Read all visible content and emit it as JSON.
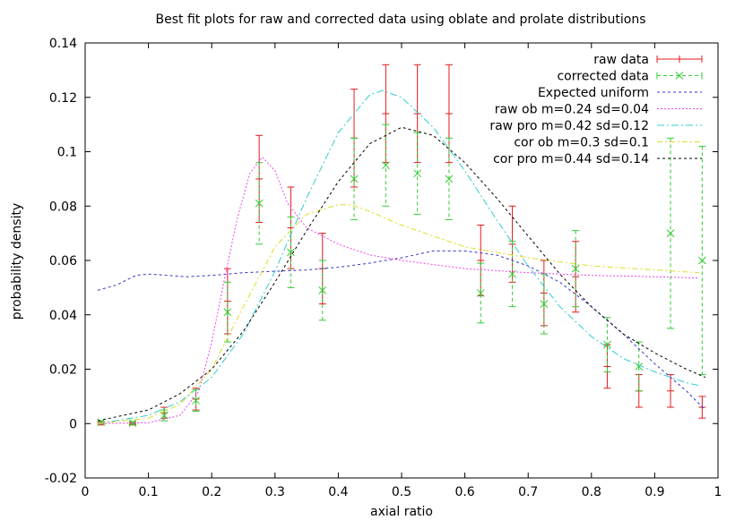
{
  "chart_data": {
    "type": "line",
    "title": "Best fit plots for raw and corrected data using oblate and prolate distributions",
    "xlabel": "axial ratio",
    "ylabel": "probability density",
    "xlim": [
      0,
      1
    ],
    "ylim": [
      -0.02,
      0.14
    ],
    "xticks": [
      0,
      0.1,
      0.2,
      0.3,
      0.4,
      0.5,
      0.6,
      0.7,
      0.8,
      0.9,
      1
    ],
    "xtick_labels": [
      "0",
      "0.1",
      "0.2",
      "0.3",
      "0.4",
      "0.5",
      "0.6",
      "0.7",
      "0.8",
      "0.9",
      "1"
    ],
    "yticks": [
      -0.02,
      0,
      0.02,
      0.04,
      0.06,
      0.08,
      0.1,
      0.12,
      0.14
    ],
    "ytick_labels": [
      "-0.02",
      "0",
      "0.02",
      "0.04",
      "0.06",
      "0.08",
      "0.1",
      "0.12",
      "0.14"
    ],
    "grid": false,
    "legend_position": "top-right",
    "series": [
      {
        "name": "raw data",
        "kind": "errorbars",
        "color": "#e41a1c",
        "x": [
          0.025,
          0.075,
          0.125,
          0.175,
          0.225,
          0.275,
          0.325,
          0.375,
          0.425,
          0.475,
          0.525,
          0.575,
          0.625,
          0.675,
          0.725,
          0.775,
          0.825,
          0.875,
          0.925,
          0.975
        ],
        "y": [
          0.0,
          0.0,
          0.004,
          0.009,
          0.045,
          0.09,
          0.072,
          0.057,
          0.105,
          0.114,
          0.114,
          0.114,
          0.06,
          0.066,
          0.048,
          0.054,
          0.021,
          0.012,
          0.012,
          0.006
        ],
        "err": [
          0.0005,
          0.0005,
          0.002,
          0.004,
          0.012,
          0.016,
          0.015,
          0.013,
          0.018,
          0.018,
          0.018,
          0.018,
          0.013,
          0.014,
          0.012,
          0.013,
          0.008,
          0.006,
          0.006,
          0.004
        ]
      },
      {
        "name": "corrected data",
        "kind": "errorbars",
        "color": "#33cc33",
        "x": [
          0.025,
          0.075,
          0.125,
          0.175,
          0.225,
          0.275,
          0.325,
          0.375,
          0.425,
          0.475,
          0.525,
          0.575,
          0.625,
          0.675,
          0.725,
          0.775,
          0.825,
          0.875,
          0.925,
          0.975
        ],
        "y": [
          0.0005,
          0.0002,
          0.003,
          0.0085,
          0.041,
          0.081,
          0.063,
          0.049,
          0.09,
          0.095,
          0.092,
          0.09,
          0.048,
          0.055,
          0.044,
          0.057,
          0.029,
          0.021,
          0.07,
          0.06
        ],
        "err": [
          0.0005,
          0.0005,
          0.002,
          0.004,
          0.011,
          0.015,
          0.013,
          0.011,
          0.015,
          0.015,
          0.015,
          0.015,
          0.011,
          0.012,
          0.011,
          0.014,
          0.01,
          0.009,
          0.035,
          0.042
        ]
      },
      {
        "name": "Expected uniform",
        "kind": "line",
        "dash": "3,3",
        "color": "#3333cc",
        "x": [
          0.02,
          0.05,
          0.08,
          0.1,
          0.13,
          0.16,
          0.2,
          0.25,
          0.3,
          0.35,
          0.4,
          0.45,
          0.5,
          0.55,
          0.6,
          0.65,
          0.7,
          0.75,
          0.8,
          0.85,
          0.9,
          0.95,
          0.98
        ],
        "y": [
          0.049,
          0.051,
          0.0545,
          0.055,
          0.0545,
          0.054,
          0.0545,
          0.0555,
          0.056,
          0.0565,
          0.0575,
          0.059,
          0.061,
          0.0635,
          0.0635,
          0.062,
          0.058,
          0.052,
          0.043,
          0.033,
          0.022,
          0.012,
          0.005
        ]
      },
      {
        "name": "raw ob m=0.24 sd=0.04",
        "kind": "line",
        "dash": "2,2",
        "color": "#ee44ee",
        "x": [
          0.02,
          0.1,
          0.15,
          0.18,
          0.2,
          0.22,
          0.24,
          0.26,
          0.28,
          0.3,
          0.32,
          0.35,
          0.4,
          0.45,
          0.5,
          0.6,
          0.7,
          0.8,
          0.9,
          0.97
        ],
        "y": [
          0.0,
          0.0003,
          0.003,
          0.012,
          0.03,
          0.053,
          0.075,
          0.092,
          0.098,
          0.093,
          0.081,
          0.072,
          0.066,
          0.062,
          0.06,
          0.057,
          0.0555,
          0.0545,
          0.054,
          0.0535
        ]
      },
      {
        "name": "raw pro m=0.42 sd=0.12",
        "kind": "line",
        "dash": "8,3,2,3",
        "color": "#33cccc",
        "x": [
          0.02,
          0.1,
          0.15,
          0.2,
          0.25,
          0.3,
          0.35,
          0.4,
          0.45,
          0.47,
          0.5,
          0.55,
          0.6,
          0.65,
          0.7,
          0.75,
          0.8,
          0.85,
          0.9,
          0.95,
          0.97
        ],
        "y": [
          0.0,
          0.003,
          0.008,
          0.017,
          0.033,
          0.056,
          0.083,
          0.107,
          0.121,
          0.1225,
          0.12,
          0.109,
          0.093,
          0.075,
          0.058,
          0.043,
          0.032,
          0.024,
          0.019,
          0.015,
          0.014
        ]
      },
      {
        "name": "cor ob m=0.3 sd=0.1",
        "kind": "line",
        "dash": "6,3,2,3",
        "color": "#dddd22",
        "x": [
          0.02,
          0.1,
          0.15,
          0.2,
          0.25,
          0.3,
          0.35,
          0.4,
          0.42,
          0.45,
          0.5,
          0.55,
          0.6,
          0.7,
          0.8,
          0.9,
          0.97
        ],
        "y": [
          0.0,
          0.002,
          0.007,
          0.02,
          0.043,
          0.065,
          0.077,
          0.0805,
          0.0805,
          0.078,
          0.073,
          0.069,
          0.065,
          0.061,
          0.058,
          0.0565,
          0.0555
        ]
      },
      {
        "name": "cor pro m=0.44 sd=0.14",
        "kind": "line",
        "dash": "3,3",
        "color": "#000000",
        "x": [
          0.02,
          0.1,
          0.15,
          0.2,
          0.25,
          0.3,
          0.35,
          0.4,
          0.45,
          0.5,
          0.55,
          0.6,
          0.65,
          0.7,
          0.75,
          0.8,
          0.85,
          0.9,
          0.95,
          0.98
        ],
        "y": [
          0.001,
          0.005,
          0.011,
          0.02,
          0.034,
          0.052,
          0.071,
          0.089,
          0.103,
          0.109,
          0.106,
          0.096,
          0.083,
          0.069,
          0.055,
          0.043,
          0.033,
          0.026,
          0.02,
          0.017
        ]
      }
    ]
  }
}
